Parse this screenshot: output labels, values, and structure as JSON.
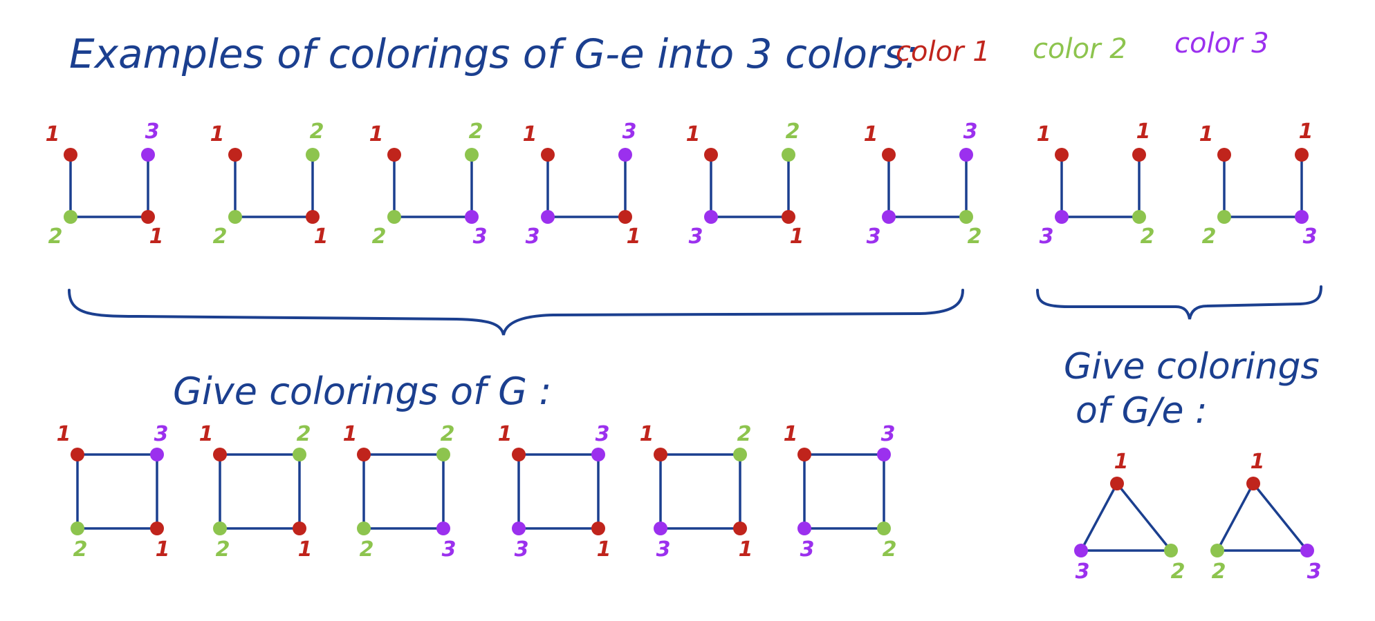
{
  "title": "Examples of colorings of  G-e into 3 colors:",
  "legend": [
    {
      "label": "color 1",
      "color": "#c0241c"
    },
    {
      "label": "color 2",
      "color": "#8dc44e"
    },
    {
      "label": "color 3",
      "color": "#9b30ee"
    }
  ],
  "ink_color": "#1b3f8f",
  "palette": {
    "1": "#c0241c",
    "2": "#8dc44e",
    "3": "#9b30ee"
  },
  "ge_colorings": [
    {
      "tl": "1",
      "tr": "3",
      "bl": "2",
      "br": "1"
    },
    {
      "tl": "1",
      "tr": "2",
      "bl": "2",
      "br": "1"
    },
    {
      "tl": "1",
      "tr": "2",
      "bl": "2",
      "br": "3"
    },
    {
      "tl": "1",
      "tr": "3",
      "bl": "3",
      "br": "1"
    },
    {
      "tl": "1",
      "tr": "2",
      "bl": "3",
      "br": "1"
    },
    {
      "tl": "1",
      "tr": "3",
      "bl": "3",
      "br": "2"
    },
    {
      "tl": "1",
      "tr": "1",
      "bl": "3",
      "br": "2"
    },
    {
      "tl": "1",
      "tr": "1",
      "bl": "2",
      "br": "3"
    }
  ],
  "g_label": "Give colorings of  G :",
  "g_colorings": [
    {
      "tl": "1",
      "tr": "3",
      "bl": "2",
      "br": "1"
    },
    {
      "tl": "1",
      "tr": "2",
      "bl": "2",
      "br": "1"
    },
    {
      "tl": "1",
      "tr": "2",
      "bl": "2",
      "br": "3"
    },
    {
      "tl": "1",
      "tr": "3",
      "bl": "3",
      "br": "1"
    },
    {
      "tl": "1",
      "tr": "2",
      "bl": "3",
      "br": "1"
    },
    {
      "tl": "1",
      "tr": "3",
      "bl": "3",
      "br": "2"
    }
  ],
  "ge_contract_label_line1": "Give colorings",
  "ge_contract_label_line2": "of  G/e :",
  "triangle_colorings": [
    {
      "top": "1",
      "bl": "3",
      "br": "2"
    },
    {
      "top": "1",
      "bl": "2",
      "br": "3"
    }
  ]
}
